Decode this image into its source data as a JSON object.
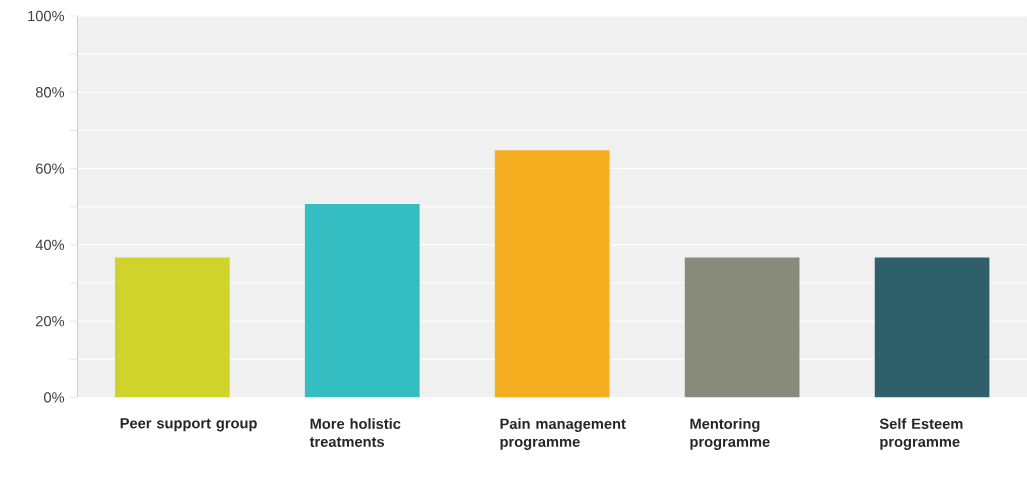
{
  "chart_data": {
    "type": "bar",
    "categories": [
      "Peer support group",
      "More holistic treatments",
      "Pain management programme",
      "Mentoring programme",
      "Self Esteem programme"
    ],
    "values": [
      36.7,
      50.7,
      64.8,
      36.7,
      36.7
    ],
    "colors": [
      "#d0d32a",
      "#35bec1",
      "#f5ae1f",
      "#888a7a",
      "#2e5f6b"
    ],
    "ylim": [
      0,
      100
    ],
    "yticks": [
      {
        "value": 0,
        "label": "0%"
      },
      {
        "value": 10,
        "label": null
      },
      {
        "value": 20,
        "label": "20%"
      },
      {
        "value": 30,
        "label": null
      },
      {
        "value": 40,
        "label": "40%"
      },
      {
        "value": 50,
        "label": null
      },
      {
        "value": 60,
        "label": "60%"
      },
      {
        "value": 70,
        "label": null
      },
      {
        "value": 80,
        "label": "80%"
      },
      {
        "value": 90,
        "label": null
      },
      {
        "value": 100,
        "label": "100%"
      }
    ],
    "grid": "y"
  }
}
